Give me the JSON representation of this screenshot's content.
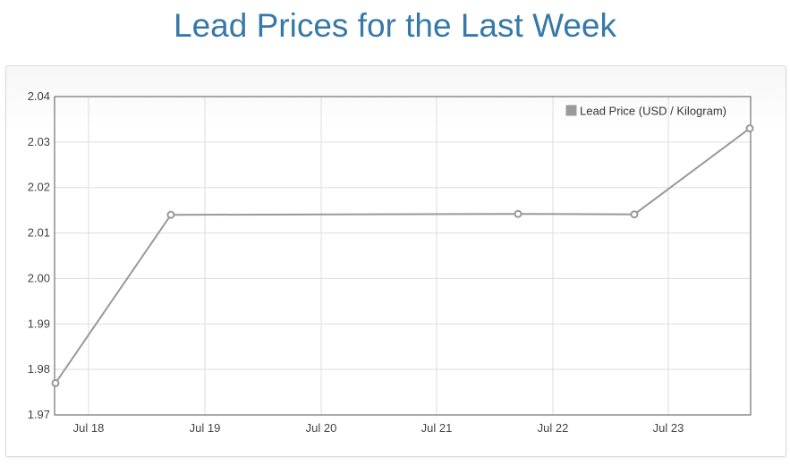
{
  "page": {
    "title": "Lead Prices for the Last Week"
  },
  "chart_data": {
    "type": "line",
    "title": "Lead Prices for the Last Week",
    "xlabel": "",
    "ylabel": "",
    "x_ticks": [
      "Jul 18",
      "Jul 19",
      "Jul 20",
      "Jul 21",
      "Jul 22",
      "Jul 23"
    ],
    "ylim": [
      1.97,
      2.04
    ],
    "y_ticks": [
      "1.97",
      "1.98",
      "1.99",
      "2.00",
      "2.01",
      "2.02",
      "2.03",
      "2.04"
    ],
    "grid": true,
    "legend_position": "top-right",
    "series": [
      {
        "name": "Lead Price (USD / Kilogram)",
        "color": "#999999",
        "points": [
          {
            "x": "Jul 17",
            "y": 1.977
          },
          {
            "x": "Jul 18",
            "y": 2.014
          },
          {
            "x": "Jul 21",
            "y": 2.0142
          },
          {
            "x": "Jul 22",
            "y": 2.0141
          },
          {
            "x": "Jul 23",
            "y": 2.033
          }
        ]
      }
    ]
  }
}
